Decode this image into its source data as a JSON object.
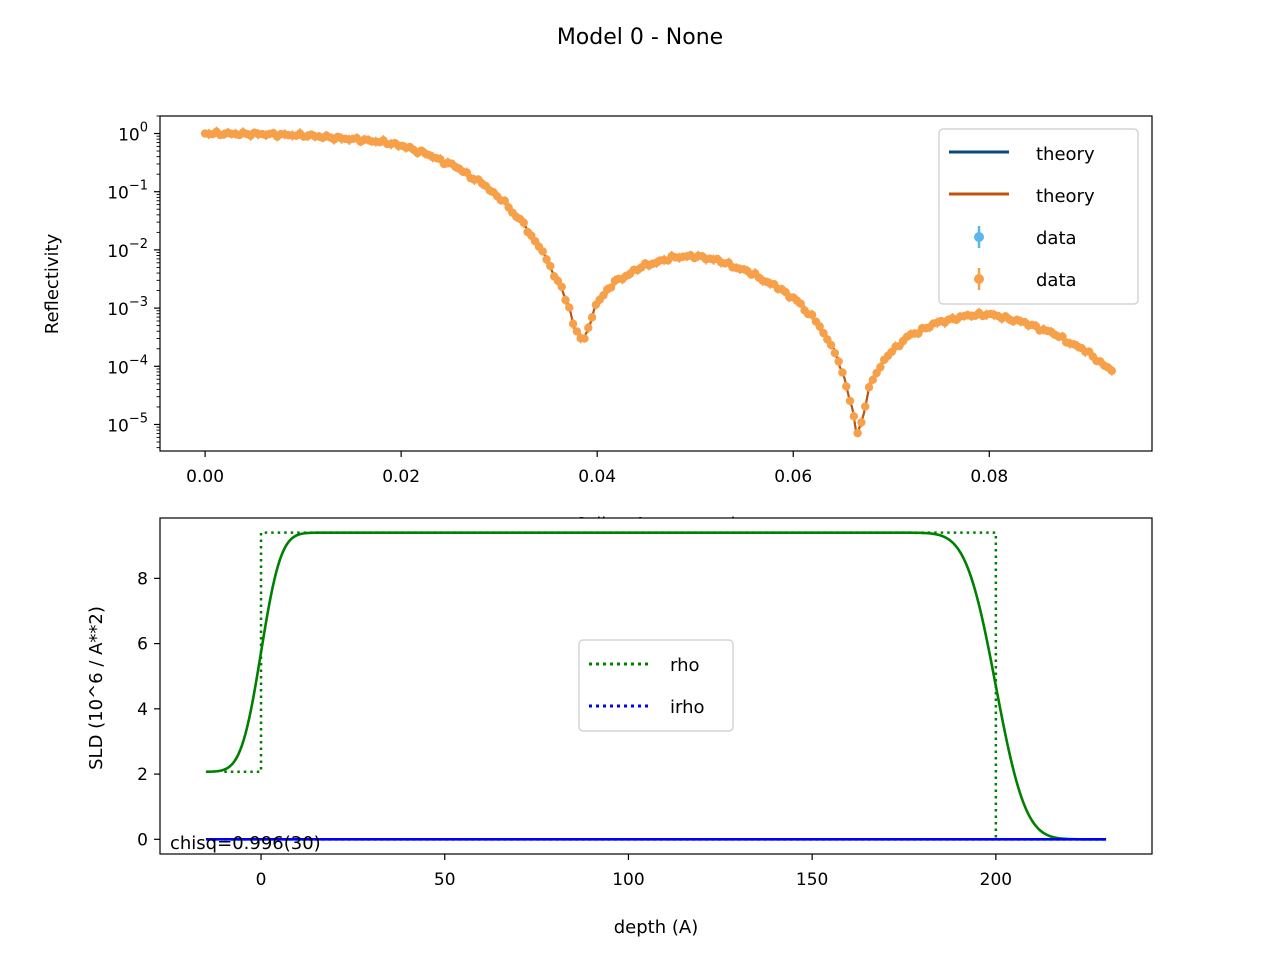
{
  "figure": {
    "title": "Model 0 - None",
    "annotation": "chisq=0.996(30)"
  },
  "colors": {
    "theory_1": "#0a4a7a",
    "theory_2": "#c0540c",
    "data_1": "#5bb6ee",
    "data_2": "#f7a04a",
    "rho": "#008000",
    "irho": "#0000ff"
  },
  "chart_data": [
    {
      "type": "scatter",
      "name": "reflectivity-panel",
      "xlabel": "Q (inv Angstroms)",
      "ylabel": "Reflectivity",
      "yscale": "log",
      "xlim": [
        -0.0046,
        0.0966
      ],
      "ylim": [
        3.5e-06,
        2.0
      ],
      "xticks": [
        0.0,
        0.02,
        0.04,
        0.06,
        0.08
      ],
      "xticklabels": [
        "0.00",
        "0.02",
        "0.04",
        "0.06",
        "0.08"
      ],
      "yticks": [
        1,
        0.1,
        0.01,
        0.001,
        0.0001,
        1e-05
      ],
      "ytick_base": "10",
      "ytick_exponents": [
        "0",
        "−1",
        "−2",
        "−3",
        "−4",
        "−5"
      ],
      "legend_position": "upper right",
      "legend": [
        "theory",
        "theory",
        "data",
        "data"
      ],
      "series": [
        {
          "name": "theory",
          "kind": "line",
          "color_key": "theory_1"
        },
        {
          "name": "theory",
          "kind": "line",
          "color_key": "theory_2"
        },
        {
          "name": "data",
          "kind": "errorbar",
          "color_key": "data_1"
        },
        {
          "name": "data",
          "kind": "errorbar",
          "color_key": "data_2"
        }
      ],
      "curve_anchor_points": {
        "x": [
          0.0,
          0.005,
          0.01,
          0.015,
          0.018,
          0.02,
          0.022,
          0.025,
          0.028,
          0.03,
          0.032,
          0.034,
          0.036,
          0.037,
          0.0378,
          0.0385,
          0.039,
          0.04,
          0.042,
          0.045,
          0.048,
          0.05,
          0.052,
          0.055,
          0.058,
          0.06,
          0.062,
          0.064,
          0.065,
          0.066,
          0.0665,
          0.067,
          0.068,
          0.07,
          0.072,
          0.075,
          0.078,
          0.08,
          0.083,
          0.086,
          0.089,
          0.0925
        ],
        "y": [
          1.0,
          0.98,
          0.93,
          0.8,
          0.72,
          0.62,
          0.48,
          0.3,
          0.15,
          0.08,
          0.035,
          0.012,
          0.003,
          0.0012,
          0.0004,
          0.00028,
          0.0004,
          0.0013,
          0.003,
          0.0055,
          0.0075,
          0.0078,
          0.0068,
          0.0045,
          0.0025,
          0.0015,
          0.0007,
          0.00022,
          8e-05,
          2e-05,
          6.5e-06,
          1.2e-05,
          6e-05,
          0.00018,
          0.00035,
          0.00058,
          0.00075,
          0.00078,
          0.0006,
          0.0004,
          0.00022,
          8.8e-05
        ]
      },
      "n_points": 240
    },
    {
      "type": "line",
      "name": "sld-panel",
      "xlabel": "depth (A)",
      "ylabel": "SLD (10^6 / A**2)",
      "xlim": [
        -27.5,
        242.5
      ],
      "ylim": [
        -0.45,
        9.85
      ],
      "xticks": [
        0,
        50,
        100,
        150,
        200
      ],
      "xticklabels": [
        "0",
        "50",
        "100",
        "150",
        "200"
      ],
      "yticks": [
        0,
        2,
        4,
        6,
        8
      ],
      "yticklabels": [
        "0",
        "2",
        "4",
        "6",
        "8"
      ],
      "legend_position": "center",
      "legend": [
        "rho",
        "irho"
      ],
      "series": [
        {
          "name": "rho",
          "style": "solid",
          "color_key": "rho",
          "profile": {
            "start": -15,
            "end": 230,
            "base": 2.07,
            "plateau": 9.4,
            "rise_center": 0,
            "rise_width": 6,
            "fall_center": 200,
            "fall_width": 9
          }
        },
        {
          "name": "rho",
          "style": "dotted",
          "color_key": "rho",
          "x": [
            -10,
            0,
            0,
            200,
            200
          ],
          "y": [
            2.07,
            2.07,
            9.4,
            9.4,
            0
          ]
        },
        {
          "name": "irho",
          "style": "solid",
          "color_key": "irho",
          "x": [
            -15,
            230
          ],
          "y": [
            0,
            0
          ]
        },
        {
          "name": "irho",
          "style": "dotted",
          "color_key": "irho",
          "x": [
            -10,
            230
          ],
          "y": [
            0,
            0
          ]
        }
      ]
    }
  ]
}
